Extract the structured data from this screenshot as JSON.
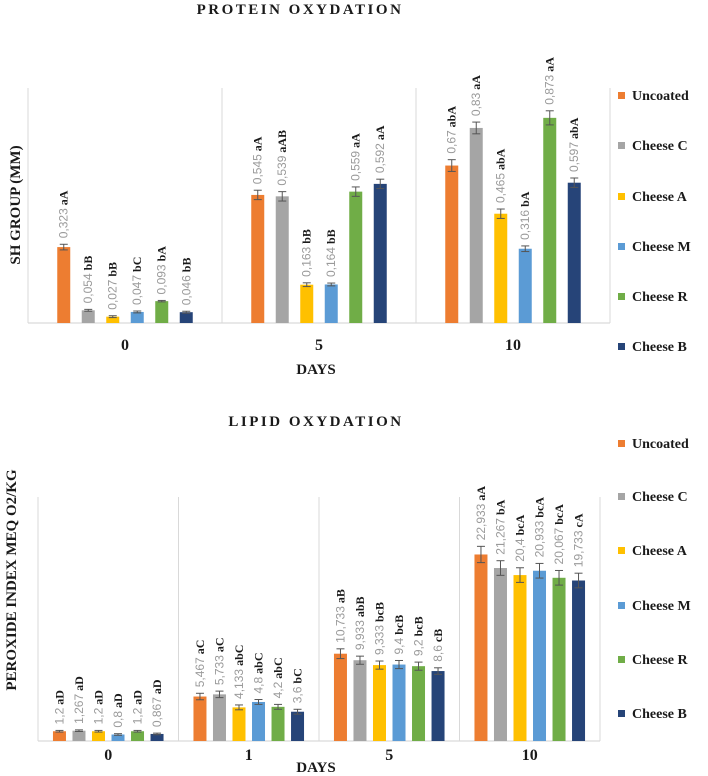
{
  "series_colors": [
    "#ED7D31",
    "#A5A5A5",
    "#FFC000",
    "#5B9BD5",
    "#70AD47",
    "#264478"
  ],
  "chart_data": [
    {
      "type": "bar",
      "title": "PROTEIN OXYDATION",
      "xlabel": "DAYS",
      "ylabel": "SH GROUP (MM)",
      "categories": [
        "0",
        "5",
        "10"
      ],
      "ylim": [
        0,
        1.0
      ],
      "grid": false,
      "legend_position": "right",
      "series": [
        {
          "name": "Uncoated",
          "values": [
            0.323,
            0.545,
            0.67
          ],
          "labels": [
            "0,323",
            "0,545",
            "0,67"
          ],
          "letters": [
            "aA",
            "aA",
            "abA"
          ],
          "err": [
            0.012,
            0.02,
            0.025
          ]
        },
        {
          "name": "Cheese C",
          "values": [
            0.054,
            0.539,
            0.83
          ],
          "labels": [
            "0,054",
            "0,539",
            "0,83"
          ],
          "letters": [
            "bB",
            "aAB",
            "aA"
          ],
          "err": [
            0.004,
            0.02,
            0.025
          ]
        },
        {
          "name": "Cheese A",
          "values": [
            0.027,
            0.163,
            0.465
          ],
          "labels": [
            "0,027",
            "0,163",
            "0,465"
          ],
          "letters": [
            "bB",
            "bB",
            "abA"
          ],
          "err": [
            0.004,
            0.008,
            0.02
          ]
        },
        {
          "name": "Cheese M",
          "values": [
            0.047,
            0.164,
            0.316
          ],
          "labels": [
            "0,047",
            "0,164",
            "0,316"
          ],
          "letters": [
            "bC",
            "bB",
            "bA"
          ],
          "err": [
            0.004,
            0.006,
            0.012
          ]
        },
        {
          "name": "Cheese R",
          "values": [
            0.093,
            0.559,
            0.873
          ],
          "labels": [
            "0,093",
            "0,559",
            "0,873"
          ],
          "letters": [
            "bA",
            "aA",
            "aA"
          ],
          "err": [
            0.003,
            0.02,
            0.03
          ]
        },
        {
          "name": "Cheese B",
          "values": [
            0.046,
            0.592,
            0.597
          ],
          "labels": [
            "0,046",
            "0,592",
            "0,597"
          ],
          "letters": [
            "bB",
            "aA",
            "abA"
          ],
          "err": [
            0.004,
            0.02,
            0.02
          ]
        }
      ]
    },
    {
      "type": "bar",
      "title": "LIPID OXYDATION",
      "xlabel": "DAYS",
      "ylabel": "PEROXIDE INDEX MEQ O2/KG",
      "categories": [
        "0",
        "1",
        "5",
        "10"
      ],
      "ylim": [
        0,
        30
      ],
      "grid": false,
      "legend_position": "right",
      "series": [
        {
          "name": "Uncoated",
          "values": [
            1.2,
            5.467,
            10.733,
            22.933
          ],
          "labels": [
            "1,2",
            "5,467",
            "10,733",
            "22,933"
          ],
          "letters": [
            "aD",
            "aC",
            "aB",
            "aA"
          ],
          "err": [
            0.1,
            0.4,
            0.6,
            1.0
          ]
        },
        {
          "name": "Cheese C",
          "values": [
            1.267,
            5.733,
            9.933,
            21.267
          ],
          "labels": [
            "1,267",
            "5,733",
            "9,933",
            "21,267"
          ],
          "letters": [
            "aD",
            "aC",
            "abB",
            "bA"
          ],
          "err": [
            0.1,
            0.4,
            0.5,
            0.9
          ]
        },
        {
          "name": "Cheese A",
          "values": [
            1.2,
            4.133,
            9.333,
            20.4
          ],
          "labels": [
            "1,2",
            "4,133",
            "9,333",
            "20,4"
          ],
          "letters": [
            "aD",
            "abC",
            "bcB",
            "bcA"
          ],
          "err": [
            0.1,
            0.3,
            0.5,
            0.9
          ]
        },
        {
          "name": "Cheese M",
          "values": [
            0.8,
            4.8,
            9.4,
            20.933
          ],
          "labels": [
            "0,8",
            "4,8",
            "9,4",
            "20,933"
          ],
          "letters": [
            "aD",
            "abC",
            "bcB",
            "bcA"
          ],
          "err": [
            0.1,
            0.3,
            0.5,
            0.9
          ]
        },
        {
          "name": "Cheese R",
          "values": [
            1.2,
            4.2,
            9.2,
            20.067
          ],
          "labels": [
            "1,2",
            "4,2",
            "9,2",
            "20,067"
          ],
          "letters": [
            "aD",
            "abC",
            "bcB",
            "bcA"
          ],
          "err": [
            0.1,
            0.3,
            0.5,
            0.9
          ]
        },
        {
          "name": "Cheese B",
          "values": [
            0.867,
            3.6,
            8.6,
            19.733
          ],
          "labels": [
            "0,867",
            "3,6",
            "8,6",
            "19,733"
          ],
          "letters": [
            "aD",
            "bC",
            "cB",
            "cA"
          ],
          "err": [
            0.1,
            0.3,
            0.4,
            0.9
          ]
        }
      ]
    }
  ]
}
